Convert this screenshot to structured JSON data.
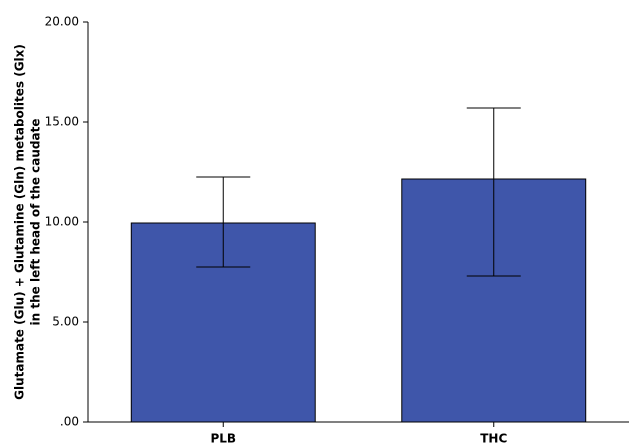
{
  "chart_data": {
    "type": "bar",
    "ylabel": [
      "Glutamate (Glu) + Glutamine (Gln) metabolites (Glx)",
      "in the left head of the caudate"
    ],
    "categories": [
      "PLB",
      "THC"
    ],
    "values": [
      9.95,
      12.15
    ],
    "error_bars": [
      [
        7.75,
        12.25
      ],
      [
        7.3,
        15.7
      ]
    ],
    "color": "#3f56aa",
    "ylim": [
      0,
      20
    ],
    "yticks": [
      {
        "value": 0,
        "label": ".00"
      },
      {
        "value": 5,
        "label": "5.00"
      },
      {
        "value": 10,
        "label": "10.00"
      },
      {
        "value": 15,
        "label": "15.00"
      },
      {
        "value": 20,
        "label": "20.00"
      }
    ],
    "grid": false
  }
}
